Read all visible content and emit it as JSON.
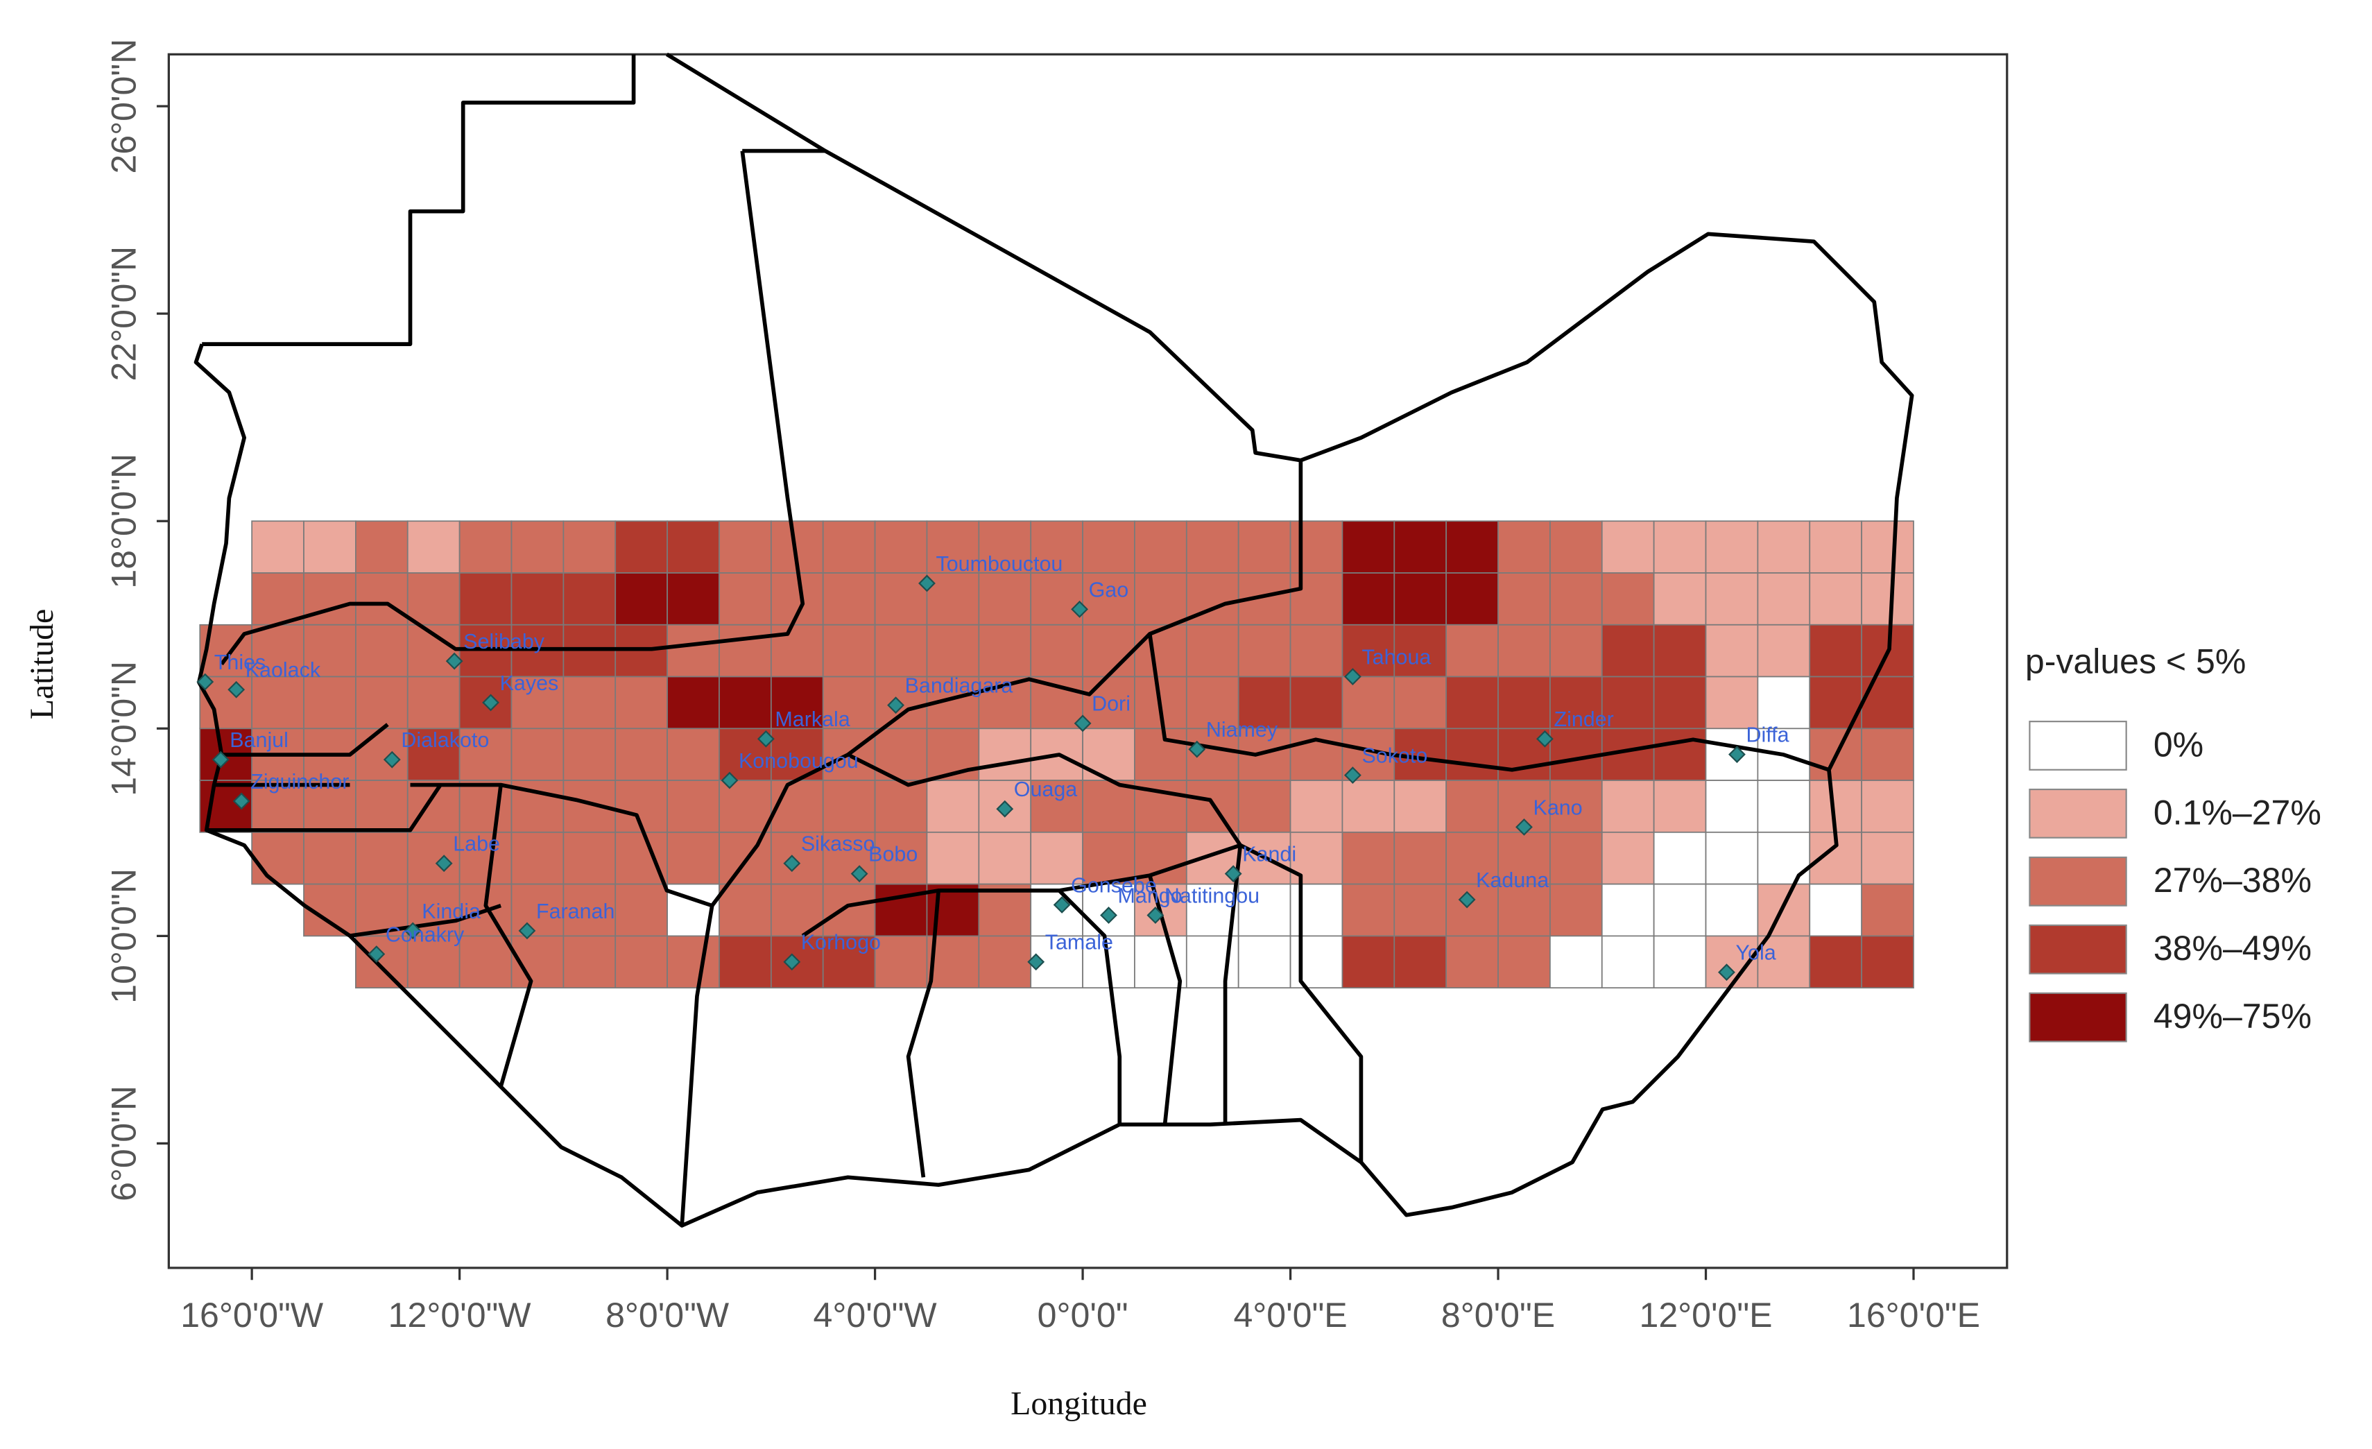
{
  "x_label": "Longitude",
  "y_label": "Latitude",
  "xlim": [
    -17.6,
    17.8
  ],
  "ylim": [
    3.6,
    27.0
  ],
  "xticks": [
    {
      "value": -16,
      "label": "16°0'0\"W"
    },
    {
      "value": -12,
      "label": "12°0'0\"W"
    },
    {
      "value": -8,
      "label": "8°0'0\"W"
    },
    {
      "value": -4,
      "label": "4°0'0\"W"
    },
    {
      "value": 0,
      "label": "0°0'0\""
    },
    {
      "value": 4,
      "label": "4°0'0\"E"
    },
    {
      "value": 8,
      "label": "8°0'0\"E"
    },
    {
      "value": 12,
      "label": "12°0'0\"E"
    },
    {
      "value": 16,
      "label": "16°0'0\"E"
    }
  ],
  "yticks": [
    {
      "value": 6,
      "label": "6°0'0\"N"
    },
    {
      "value": 10,
      "label": "10°0'0\"N"
    },
    {
      "value": 14,
      "label": "14°0'0\"N"
    },
    {
      "value": 18,
      "label": "18°0'0\"N"
    },
    {
      "value": 22,
      "label": "22°0'0\"N"
    },
    {
      "value": 26,
      "label": "26°0'0\"N"
    }
  ],
  "legend": {
    "title": "p-values < 5%",
    "classes": [
      {
        "label": "0%",
        "color": "#ffffff"
      },
      {
        "label": "0.1%–27%",
        "color": "#eba89c"
      },
      {
        "label": "27%–38%",
        "color": "#cf6e5d"
      },
      {
        "label": "38%–49%",
        "color": "#b13a2e"
      },
      {
        "label": "49%–75%",
        "color": "#8f0b0b"
      }
    ]
  },
  "grid": {
    "lon0": -17,
    "lat_top": 18,
    "step": 1,
    "rows": [
      [
        null,
        1,
        1,
        2,
        1,
        2,
        2,
        2,
        3,
        3,
        2,
        2,
        2,
        2,
        2,
        2,
        2,
        2,
        2,
        2,
        2,
        2,
        4,
        4,
        4,
        2,
        2,
        1,
        1,
        1,
        1,
        1,
        1
      ],
      [
        null,
        2,
        2,
        2,
        2,
        3,
        3,
        3,
        4,
        4,
        2,
        2,
        2,
        2,
        2,
        2,
        2,
        2,
        2,
        2,
        2,
        2,
        4,
        4,
        4,
        2,
        2,
        2,
        1,
        1,
        1,
        1,
        1
      ],
      [
        2,
        2,
        2,
        2,
        2,
        3,
        3,
        3,
        3,
        2,
        2,
        2,
        2,
        2,
        2,
        2,
        2,
        2,
        2,
        2,
        2,
        2,
        3,
        3,
        2,
        2,
        2,
        3,
        3,
        1,
        1,
        3,
        3
      ],
      [
        2,
        2,
        2,
        2,
        2,
        3,
        2,
        2,
        2,
        4,
        4,
        4,
        2,
        2,
        2,
        2,
        2,
        2,
        2,
        2,
        3,
        3,
        2,
        2,
        3,
        3,
        3,
        3,
        3,
        1,
        0,
        3,
        3
      ],
      [
        4,
        2,
        2,
        2,
        3,
        2,
        2,
        2,
        2,
        2,
        3,
        3,
        2,
        2,
        2,
        1,
        1,
        1,
        2,
        2,
        2,
        2,
        2,
        3,
        3,
        3,
        3,
        3,
        3,
        0,
        0,
        2,
        2
      ],
      [
        4,
        2,
        2,
        2,
        2,
        2,
        2,
        2,
        2,
        2,
        2,
        2,
        2,
        2,
        1,
        1,
        2,
        2,
        2,
        2,
        2,
        1,
        1,
        1,
        2,
        2,
        2,
        1,
        1,
        0,
        0,
        1,
        1
      ],
      [
        null,
        2,
        2,
        2,
        2,
        2,
        2,
        2,
        2,
        2,
        2,
        2,
        2,
        2,
        1,
        1,
        1,
        2,
        2,
        1,
        1,
        1,
        2,
        2,
        2,
        2,
        2,
        1,
        0,
        0,
        0,
        1,
        1
      ],
      [
        null,
        null,
        2,
        2,
        2,
        2,
        2,
        2,
        2,
        0,
        2,
        2,
        2,
        4,
        4,
        2,
        0,
        0,
        1,
        0,
        0,
        0,
        2,
        2,
        2,
        2,
        2,
        0,
        0,
        0,
        1,
        0,
        2
      ],
      [
        null,
        null,
        null,
        2,
        2,
        2,
        2,
        2,
        2,
        2,
        3,
        3,
        3,
        2,
        2,
        2,
        0,
        0,
        0,
        0,
        0,
        0,
        3,
        3,
        2,
        2,
        0,
        0,
        0,
        1,
        1,
        3,
        3
      ]
    ]
  },
  "cities": [
    {
      "name": "Toumbouctou",
      "lon": -3.0,
      "lat": 16.8
    },
    {
      "name": "Gao",
      "lon": -0.06,
      "lat": 16.3
    },
    {
      "name": "Selibaby",
      "lon": -12.1,
      "lat": 15.3
    },
    {
      "name": "Thies",
      "lon": -16.9,
      "lat": 14.9
    },
    {
      "name": "Kaolack",
      "lon": -16.3,
      "lat": 14.75
    },
    {
      "name": "Banjul",
      "lon": -16.6,
      "lat": 13.4
    },
    {
      "name": "Ziguinchor",
      "lon": -16.2,
      "lat": 12.6
    },
    {
      "name": "Kayes",
      "lon": -11.4,
      "lat": 14.5
    },
    {
      "name": "Dialakoto",
      "lon": -13.3,
      "lat": 13.4
    },
    {
      "name": "Bandiagara",
      "lon": -3.6,
      "lat": 14.45
    },
    {
      "name": "Markala",
      "lon": -6.1,
      "lat": 13.8
    },
    {
      "name": "Konobougou",
      "lon": -6.8,
      "lat": 13.0
    },
    {
      "name": "Dori",
      "lon": 0.0,
      "lat": 14.1
    },
    {
      "name": "Niamey",
      "lon": 2.2,
      "lat": 13.6
    },
    {
      "name": "Tahoua",
      "lon": 5.2,
      "lat": 15.0
    },
    {
      "name": "Zinder",
      "lon": 8.9,
      "lat": 13.8
    },
    {
      "name": "Diffa",
      "lon": 12.6,
      "lat": 13.5
    },
    {
      "name": "Sokoto",
      "lon": 5.2,
      "lat": 13.1
    },
    {
      "name": "Kano",
      "lon": 8.5,
      "lat": 12.1
    },
    {
      "name": "Kaduna",
      "lon": 7.4,
      "lat": 10.7
    },
    {
      "name": "Yola",
      "lon": 12.4,
      "lat": 9.3
    },
    {
      "name": "Kandi",
      "lon": 2.9,
      "lat": 11.2
    },
    {
      "name": "Natitingou",
      "lon": 1.4,
      "lat": 10.4
    },
    {
      "name": "Mango",
      "lon": 0.5,
      "lat": 10.4
    },
    {
      "name": "Tamale",
      "lon": -0.9,
      "lat": 9.5
    },
    {
      "name": "Ouaga",
      "lon": -1.5,
      "lat": 12.45
    },
    {
      "name": "Sikasso",
      "lon": -5.6,
      "lat": 11.4
    },
    {
      "name": "Bobo",
      "lon": -4.3,
      "lat": 11.2
    },
    {
      "name": "Gonsebe",
      "lon": -0.4,
      "lat": 10.6
    },
    {
      "name": "Korhogo",
      "lon": -5.6,
      "lat": 9.5
    },
    {
      "name": "Labe",
      "lon": -12.3,
      "lat": 11.4
    },
    {
      "name": "Kindia",
      "lon": -12.9,
      "lat": 10.1
    },
    {
      "name": "Faranah",
      "lon": -10.7,
      "lat": 10.1
    },
    {
      "name": "Conakry",
      "lon": -13.6,
      "lat": 9.65
    }
  ]
}
